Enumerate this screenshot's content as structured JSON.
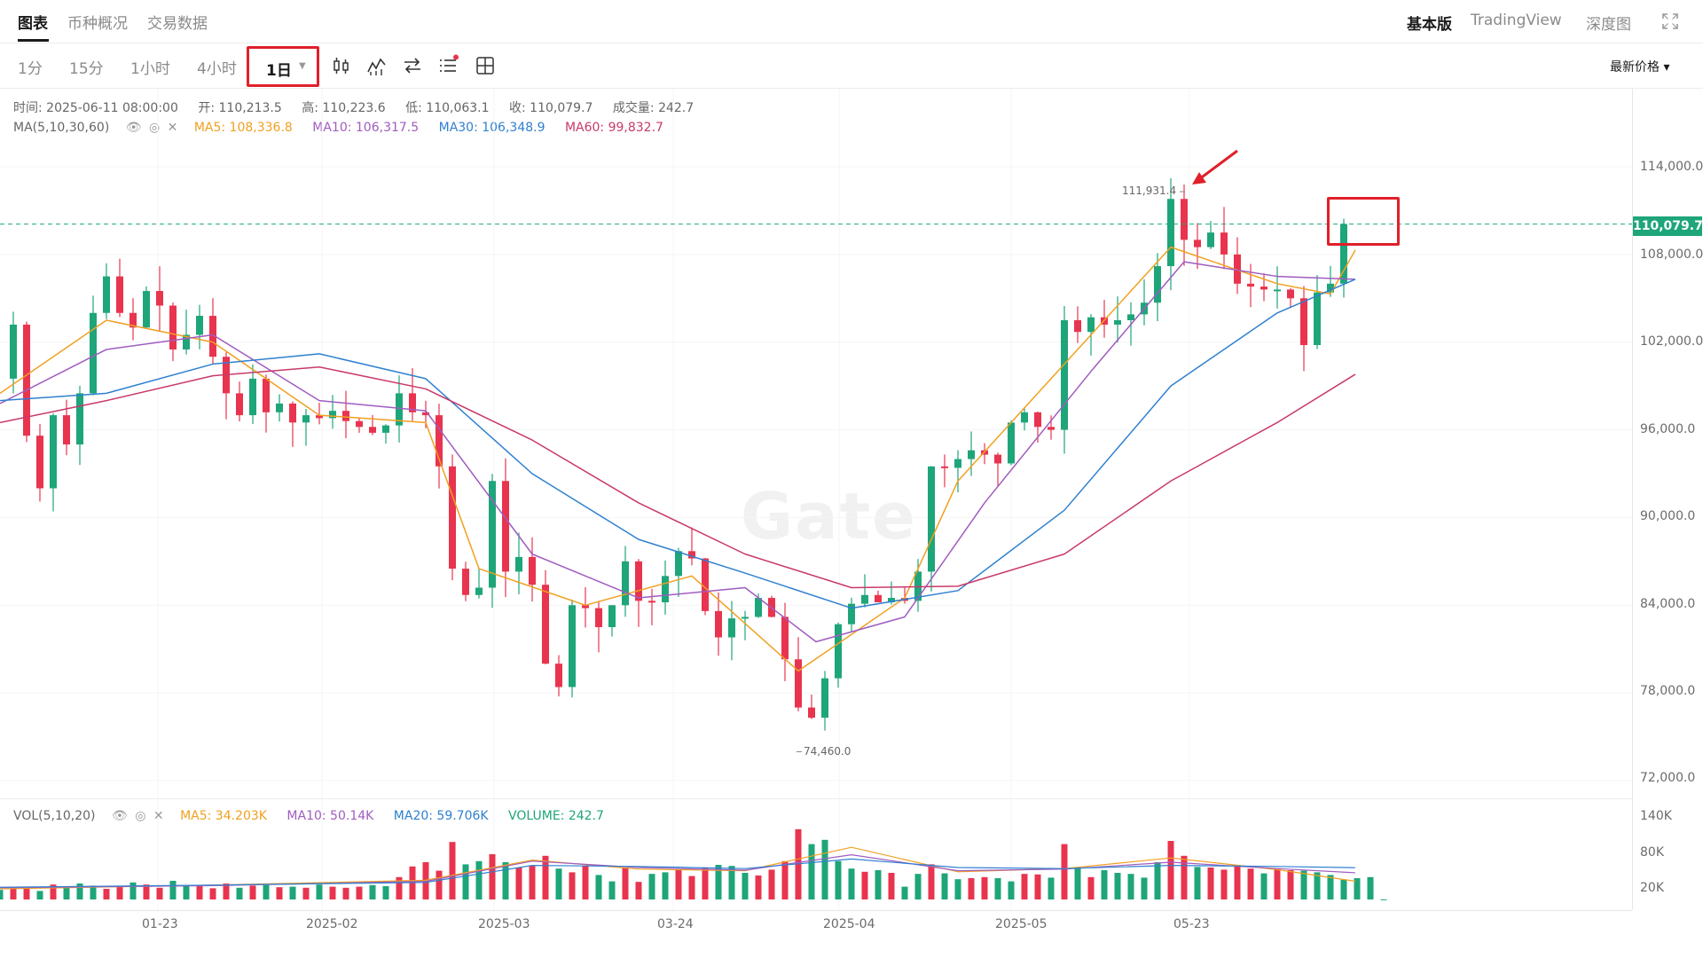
{
  "top_tabs": [
    {
      "label": "图表",
      "active": true
    },
    {
      "label": "币种概况",
      "active": false
    },
    {
      "label": "交易数据",
      "active": false
    }
  ],
  "versions": [
    {
      "label": "基本版",
      "active": true
    },
    {
      "label": "TradingView",
      "active": false
    },
    {
      "label": "深度图",
      "active": false
    }
  ],
  "intervals": [
    "1分",
    "15分",
    "1小时",
    "4小时"
  ],
  "selected_interval": "1日",
  "price_type": "最新价格 ▾",
  "ohlc": {
    "time_label": "时间:",
    "time": "2025-06-11 08:00:00",
    "open_label": "开:",
    "open": "110,213.5",
    "high_label": "高:",
    "high": "110,223.6",
    "low_label": "低:",
    "low": "110,063.1",
    "close_label": "收:",
    "close": "110,079.7",
    "volume_label": "成交量:",
    "volume": "242.7"
  },
  "ma": {
    "label": "MA(5,10,30,60)",
    "ma5": "MA5: 108,336.8",
    "ma10": "MA10: 106,317.5",
    "ma30": "MA30: 106,348.9",
    "ma60": "MA60: 99,832.7"
  },
  "vol_info": {
    "label": "VOL(5,10,20)",
    "ma5": "MA5: 34.203K",
    "ma10": "MA10: 50.14K",
    "ma20": "MA20: 59.706K",
    "volume": "VOLUME: 242.7"
  },
  "y_axis": [
    "114,000.0",
    "108,000.0",
    "102,000.0",
    "96,000.0",
    "90,000.0",
    "84,000.0",
    "78,000.0",
    "72,000.0"
  ],
  "vol_axis": [
    "140K",
    "80K",
    "20K"
  ],
  "x_axis": [
    "01-23",
    "2025-02",
    "2025-03",
    "03-24",
    "2025-04",
    "2025-05",
    "05-23"
  ],
  "last_price": "110,079.7",
  "max_label": "111,931.4",
  "min_label": "74,460.0",
  "watermark": "Gate",
  "colors": {
    "up": "#1ea57a",
    "down": "#e8344e",
    "ma5": "#f0a020",
    "ma10": "#a05cc0",
    "ma30": "#2f80d0",
    "ma60": "#c83a6a",
    "annotation": "#e0202a"
  },
  "chart_data": {
    "type": "candlestick",
    "interval": "1日",
    "ylim": [
      72000,
      116000
    ],
    "price_points": [
      [
        0,
        99500
      ],
      [
        15,
        103200
      ],
      [
        30,
        95600
      ],
      [
        45,
        92000
      ],
      [
        60,
        97000
      ],
      [
        75,
        95000
      ],
      [
        90,
        98500
      ],
      [
        105,
        104000
      ],
      [
        120,
        106500
      ],
      [
        135,
        104000
      ],
      [
        150,
        103000
      ],
      [
        165,
        105500
      ],
      [
        180,
        104500
      ],
      [
        195,
        101500
      ],
      [
        210,
        102500
      ],
      [
        225,
        103800
      ],
      [
        240,
        101000
      ],
      [
        255,
        98500
      ],
      [
        270,
        97000
      ],
      [
        285,
        99500
      ],
      [
        300,
        97200
      ],
      [
        315,
        97800
      ],
      [
        330,
        96500
      ],
      [
        345,
        97000
      ],
      [
        360,
        96800
      ],
      [
        375,
        97300
      ],
      [
        390,
        96600
      ],
      [
        405,
        96200
      ],
      [
        420,
        95800
      ],
      [
        435,
        96300
      ],
      [
        450,
        98500
      ],
      [
        465,
        97200
      ],
      [
        480,
        97000
      ],
      [
        495,
        93500
      ],
      [
        510,
        86500
      ],
      [
        525,
        84700
      ],
      [
        540,
        85200
      ],
      [
        555,
        92500
      ],
      [
        570,
        86300
      ],
      [
        585,
        87300
      ],
      [
        600,
        85400
      ],
      [
        615,
        80000
      ],
      [
        630,
        78400
      ],
      [
        645,
        84000
      ],
      [
        660,
        83800
      ],
      [
        675,
        82500
      ],
      [
        690,
        84000
      ],
      [
        705,
        87000
      ],
      [
        720,
        84300
      ],
      [
        735,
        84200
      ],
      [
        750,
        86000
      ],
      [
        765,
        87700
      ],
      [
        780,
        87200
      ],
      [
        795,
        83600
      ],
      [
        810,
        81800
      ],
      [
        825,
        83100
      ],
      [
        840,
        83200
      ],
      [
        855,
        84500
      ],
      [
        870,
        83200
      ],
      [
        885,
        80300
      ],
      [
        900,
        77000
      ],
      [
        915,
        76300
      ],
      [
        930,
        79000
      ],
      [
        945,
        82700
      ],
      [
        960,
        84100
      ],
      [
        975,
        84700
      ],
      [
        990,
        84200
      ],
      [
        1005,
        84500
      ],
      [
        1020,
        84300
      ],
      [
        1035,
        86300
      ],
      [
        1050,
        93500
      ],
      [
        1065,
        93400
      ],
      [
        1080,
        94000
      ],
      [
        1095,
        94600
      ],
      [
        1110,
        94300
      ],
      [
        1125,
        93700
      ],
      [
        1140,
        96500
      ],
      [
        1155,
        97200
      ],
      [
        1170,
        96200
      ],
      [
        1185,
        96000
      ],
      [
        1200,
        103500
      ],
      [
        1215,
        102700
      ],
      [
        1230,
        103700
      ],
      [
        1245,
        103200
      ],
      [
        1260,
        103500
      ],
      [
        1275,
        103900
      ],
      [
        1290,
        104700
      ],
      [
        1305,
        107200
      ],
      [
        1320,
        111800
      ],
      [
        1335,
        109000
      ],
      [
        1350,
        108500
      ],
      [
        1365,
        109500
      ],
      [
        1380,
        108000
      ],
      [
        1395,
        106000
      ],
      [
        1410,
        105800
      ],
      [
        1425,
        105600
      ],
      [
        1440,
        105600
      ],
      [
        1455,
        105000
      ],
      [
        1470,
        101800
      ],
      [
        1485,
        105400
      ],
      [
        1500,
        106000
      ],
      [
        1515,
        110080
      ]
    ],
    "ma_lines": {
      "MA5": [
        [
          0,
          98500
        ],
        [
          120,
          103500
        ],
        [
          240,
          102000
        ],
        [
          360,
          97000
        ],
        [
          480,
          96500
        ],
        [
          540,
          86500
        ],
        [
          660,
          84000
        ],
        [
          780,
          86000
        ],
        [
          900,
          79500
        ],
        [
          1020,
          84500
        ],
        [
          1080,
          92500
        ],
        [
          1200,
          100500
        ],
        [
          1320,
          108500
        ],
        [
          1440,
          106000
        ],
        [
          1500,
          105300
        ],
        [
          1528,
          108300
        ]
      ],
      "MA10": [
        [
          0,
          97800
        ],
        [
          120,
          101500
        ],
        [
          240,
          102500
        ],
        [
          360,
          98000
        ],
        [
          480,
          97300
        ],
        [
          600,
          87500
        ],
        [
          720,
          84500
        ],
        [
          840,
          85200
        ],
        [
          920,
          81500
        ],
        [
          1020,
          83200
        ],
        [
          1110,
          91000
        ],
        [
          1230,
          100000
        ],
        [
          1335,
          107500
        ],
        [
          1440,
          106500
        ],
        [
          1528,
          106300
        ]
      ],
      "MA30": [
        [
          0,
          98000
        ],
        [
          120,
          98500
        ],
        [
          240,
          100500
        ],
        [
          360,
          101200
        ],
        [
          480,
          99500
        ],
        [
          600,
          93000
        ],
        [
          720,
          88500
        ],
        [
          840,
          86200
        ],
        [
          960,
          83800
        ],
        [
          1080,
          85000
        ],
        [
          1200,
          90500
        ],
        [
          1320,
          99000
        ],
        [
          1440,
          104000
        ],
        [
          1528,
          106300
        ]
      ],
      "MA60": [
        [
          0,
          96500
        ],
        [
          120,
          98000
        ],
        [
          240,
          99700
        ],
        [
          360,
          100300
        ],
        [
          480,
          98800
        ],
        [
          600,
          95300
        ],
        [
          720,
          91000
        ],
        [
          840,
          87500
        ],
        [
          960,
          85200
        ],
        [
          1080,
          85300
        ],
        [
          1200,
          87500
        ],
        [
          1320,
          92500
        ],
        [
          1440,
          96500
        ],
        [
          1528,
          99800
        ]
      ]
    },
    "volume": {
      "ylim": [
        0,
        160000
      ],
      "values": [
        18000,
        24000,
        20000,
        16000,
        28000,
        22000,
        30000,
        26000,
        20000,
        24000,
        32000,
        28000,
        22000,
        35000,
        25000,
        26000,
        21000,
        30000,
        22000,
        26000,
        27000,
        23000,
        24000,
        22000,
        28000,
        24000,
        22000,
        24000,
        27000,
        25000,
        42000,
        62000,
        70000,
        54000,
        108000,
        66000,
        72000,
        85000,
        70000,
        60000,
        63000,
        82000,
        58000,
        51000,
        64000,
        46000,
        34000,
        60000,
        33000,
        48000,
        51000,
        55000,
        44000,
        60000,
        65000,
        63000,
        50000,
        45000,
        56000,
        72000,
        132000,
        104000,
        112000,
        72000,
        58000,
        52000,
        55000,
        50000,
        24000,
        48000,
        66000,
        49000,
        38000,
        40000,
        42000,
        40000,
        34000,
        48000,
        47000,
        41000,
        104000,
        60000,
        42000,
        55000,
        50000,
        48000,
        41000,
        70000,
        110000,
        82000,
        61000,
        60000,
        56000,
        65000,
        58000,
        49000,
        58000,
        55000,
        54000,
        51000,
        46000,
        37000,
        40000,
        42000,
        243
      ],
      "ma5": [
        [
          0,
          20000
        ],
        [
          240,
          27000
        ],
        [
          480,
          36000
        ],
        [
          600,
          74000
        ],
        [
          720,
          57000
        ],
        [
          840,
          54000
        ],
        [
          960,
          98000
        ],
        [
          1080,
          52000
        ],
        [
          1200,
          58000
        ],
        [
          1320,
          78000
        ],
        [
          1440,
          56000
        ],
        [
          1528,
          34200
        ]
      ],
      "ma10": [
        [
          0,
          22000
        ],
        [
          240,
          26000
        ],
        [
          480,
          34000
        ],
        [
          600,
          72000
        ],
        [
          720,
          60000
        ],
        [
          840,
          55000
        ],
        [
          960,
          84000
        ],
        [
          1080,
          54000
        ],
        [
          1200,
          57000
        ],
        [
          1320,
          70000
        ],
        [
          1440,
          58000
        ],
        [
          1528,
          50100
        ]
      ],
      "ma20": [
        [
          0,
          23000
        ],
        [
          240,
          27000
        ],
        [
          480,
          32000
        ],
        [
          600,
          64000
        ],
        [
          720,
          62000
        ],
        [
          840,
          58000
        ],
        [
          960,
          76000
        ],
        [
          1080,
          60000
        ],
        [
          1200,
          58000
        ],
        [
          1320,
          64000
        ],
        [
          1440,
          62000
        ],
        [
          1528,
          59700
        ]
      ]
    }
  }
}
